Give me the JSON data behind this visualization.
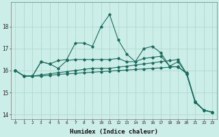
{
  "x": [
    0,
    1,
    2,
    3,
    4,
    5,
    6,
    7,
    8,
    9,
    10,
    11,
    12,
    13,
    14,
    15,
    16,
    17,
    18,
    19,
    20,
    21,
    22,
    23
  ],
  "line1": [
    16.0,
    15.75,
    15.75,
    16.4,
    16.3,
    16.45,
    16.5,
    17.25,
    17.25,
    17.1,
    18.0,
    18.55,
    17.4,
    16.75,
    16.4,
    17.0,
    17.1,
    16.8,
    16.2,
    16.15,
    15.9,
    14.6,
    14.2,
    14.1
  ],
  "line2": [
    16.0,
    15.75,
    15.75,
    16.4,
    16.3,
    16.1,
    16.45,
    16.5,
    16.5,
    16.5,
    16.5,
    16.5,
    16.55,
    16.4,
    16.4,
    16.55,
    16.6,
    16.65,
    16.2,
    16.4,
    15.85,
    14.55,
    14.2,
    14.1
  ],
  "line3": [
    16.0,
    15.75,
    15.75,
    15.8,
    15.85,
    15.9,
    15.95,
    16.0,
    16.05,
    16.1,
    16.1,
    16.1,
    16.15,
    16.2,
    16.25,
    16.3,
    16.35,
    16.4,
    16.45,
    16.5,
    15.85,
    14.55,
    14.2,
    14.1
  ],
  "line4": [
    16.0,
    15.75,
    15.75,
    15.75,
    15.78,
    15.82,
    15.85,
    15.87,
    15.9,
    15.92,
    15.95,
    15.97,
    16.0,
    16.02,
    16.05,
    16.07,
    16.1,
    16.12,
    16.15,
    16.18,
    15.85,
    14.55,
    14.2,
    14.1
  ],
  "color": "#1a6b5e",
  "bg_color": "#cceee8",
  "grid_color": "#aad4cc",
  "xlabel": "Humidex (Indice chaleur)",
  "ylim": [
    13.8,
    19.1
  ],
  "xlim": [
    -0.5,
    23.5
  ],
  "yticks": [
    14,
    15,
    16,
    17,
    18
  ],
  "xticks": [
    0,
    1,
    2,
    3,
    4,
    5,
    6,
    7,
    8,
    9,
    10,
    11,
    12,
    13,
    14,
    15,
    16,
    17,
    18,
    19,
    20,
    21,
    22,
    23
  ]
}
